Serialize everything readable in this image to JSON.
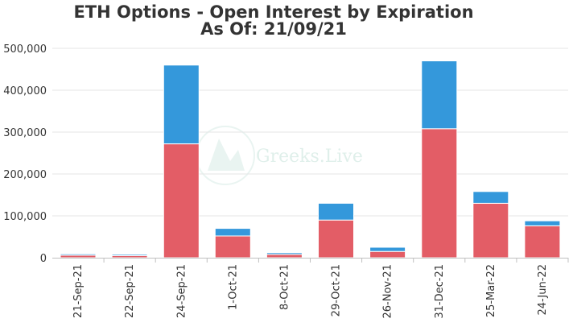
{
  "chart_data": {
    "type": "bar",
    "stacked": true,
    "title": "ETH Options - Open Interest by Expiration",
    "subtitle": "As Of: 21/09/21",
    "categories": [
      "21-Sep-21",
      "22-Sep-21",
      "24-Sep-21",
      "1-Oct-21",
      "8-Oct-21",
      "29-Oct-21",
      "26-Nov-21",
      "31-Dec-21",
      "25-Mar-22",
      "24-Jun-22"
    ],
    "series": [
      {
        "values": [
          6000,
          5000,
          272000,
          52000,
          8000,
          90000,
          15000,
          308000,
          130000,
          76000
        ],
        "color": "#e35d66"
      },
      {
        "values": [
          3000,
          3000,
          188000,
          18000,
          4000,
          40000,
          10000,
          162000,
          28000,
          12000
        ],
        "color": "#3498db"
      }
    ],
    "yticks": [
      "0",
      "100,000",
      "200,000",
      "300,000",
      "400,000",
      "500,000"
    ],
    "ylim": [
      0,
      500000
    ],
    "grid": true,
    "legend": "none",
    "watermark": "Greeks.Live"
  }
}
